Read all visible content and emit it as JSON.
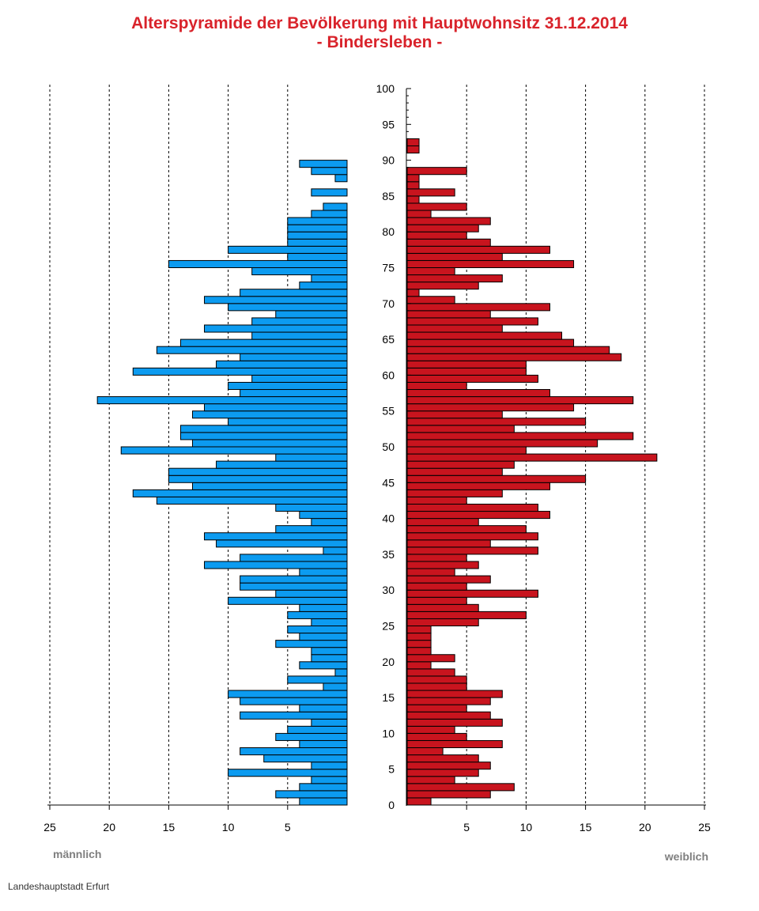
{
  "chart_data": {
    "type": "bar",
    "title": "Alterspyramide der Bevölkerung mit Hauptwohnsitz 31.12.2014",
    "subtitle": "- Bindersleben -",
    "left_label": "männlich",
    "right_label": "weiblich",
    "source": "Landeshauptstadt Erfurt",
    "age_axis": {
      "range": [
        0,
        100
      ],
      "ticks": [
        0,
        5,
        10,
        15,
        20,
        25,
        30,
        35,
        40,
        45,
        50,
        55,
        60,
        65,
        70,
        75,
        80,
        85,
        90,
        95,
        100
      ]
    },
    "value_axis": {
      "range": [
        0,
        25
      ],
      "ticks": [
        5,
        10,
        15,
        20,
        25
      ],
      "left_tick_labels": [
        "25",
        "20",
        "15",
        "10",
        "5"
      ],
      "right_tick_labels": [
        "5",
        "10",
        "15",
        "20",
        "25"
      ]
    },
    "grid": true,
    "colors": {
      "male": "#0c9bf0",
      "female": "#c8141e",
      "title": "#d9232b",
      "labels": "#7f7f7f"
    },
    "ages": [
      0,
      1,
      2,
      3,
      4,
      5,
      6,
      7,
      8,
      9,
      10,
      11,
      12,
      13,
      14,
      15,
      16,
      17,
      18,
      19,
      20,
      21,
      22,
      23,
      24,
      25,
      26,
      27,
      28,
      29,
      30,
      31,
      32,
      33,
      34,
      35,
      36,
      37,
      38,
      39,
      40,
      41,
      42,
      43,
      44,
      45,
      46,
      47,
      48,
      49,
      50,
      51,
      52,
      53,
      54,
      55,
      56,
      57,
      58,
      59,
      60,
      61,
      62,
      63,
      64,
      65,
      66,
      67,
      68,
      69,
      70,
      71,
      72,
      73,
      74,
      75,
      76,
      77,
      78,
      79,
      80,
      81,
      82,
      83,
      84,
      85,
      86,
      87,
      88,
      89,
      90,
      91,
      92
    ],
    "series": [
      {
        "name": "männlich",
        "values": [
          4,
          6,
          4,
          3,
          10,
          3,
          7,
          9,
          4,
          6,
          5,
          3,
          9,
          4,
          9,
          10,
          2,
          5,
          1,
          4,
          3,
          3,
          6,
          4,
          5,
          3,
          5,
          4,
          10,
          6,
          9,
          9,
          4,
          12,
          9,
          2,
          11,
          12,
          6,
          3,
          4,
          6,
          16,
          18,
          13,
          15,
          15,
          11,
          6,
          19,
          13,
          14,
          14,
          10,
          13,
          12,
          21,
          9,
          10,
          8,
          18,
          11,
          9,
          16,
          14,
          8,
          12,
          8,
          6,
          10,
          12,
          9,
          4,
          3,
          8,
          15,
          5,
          10,
          5,
          5,
          5,
          5,
          3,
          2,
          0,
          3,
          0,
          1,
          3,
          4,
          0,
          0,
          0
        ]
      },
      {
        "name": "weiblich",
        "values": [
          2,
          7,
          9,
          4,
          6,
          7,
          6,
          3,
          8,
          5,
          4,
          8,
          7,
          5,
          7,
          8,
          5,
          5,
          4,
          2,
          4,
          2,
          2,
          2,
          2,
          6,
          10,
          6,
          5,
          11,
          5,
          7,
          4,
          6,
          5,
          11,
          7,
          11,
          10,
          6,
          12,
          11,
          5,
          8,
          12,
          15,
          8,
          9,
          21,
          10,
          16,
          19,
          9,
          15,
          8,
          14,
          19,
          12,
          5,
          11,
          10,
          10,
          18,
          17,
          14,
          13,
          8,
          11,
          7,
          12,
          4,
          1,
          6,
          8,
          4,
          14,
          8,
          12,
          7,
          5,
          6,
          7,
          2,
          5,
          1,
          4,
          1,
          1,
          5,
          0,
          0,
          1,
          1
        ]
      }
    ]
  }
}
